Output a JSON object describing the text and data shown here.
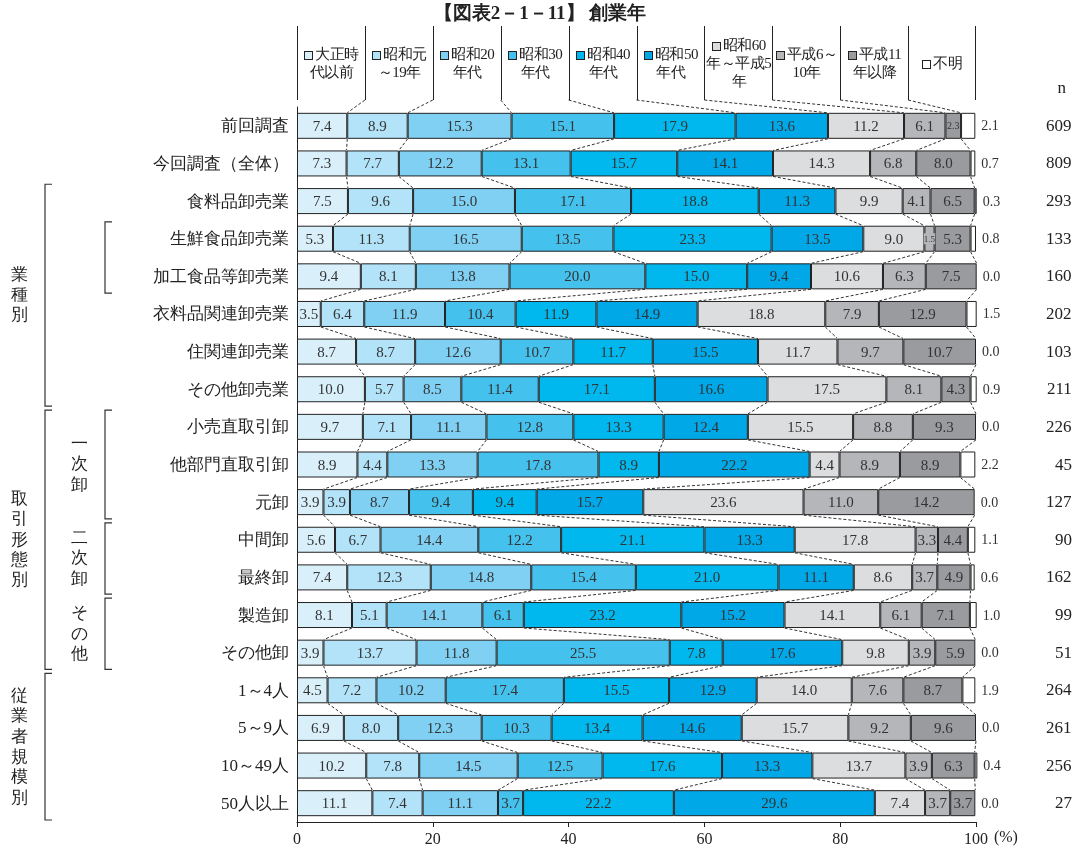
{
  "chart_data": {
    "type": "bar",
    "orientation": "horizontal",
    "stacked": true,
    "title": "【図表2－1－11】 創業年",
    "xlabel": "(%)",
    "xlim": [
      0,
      100
    ],
    "xticks": [
      0,
      20,
      40,
      60,
      80,
      100
    ],
    "legend": "top",
    "grid": false,
    "categories": [
      "前回調査",
      "今回調査（全体）",
      "食料品卸売業",
      "生鮮食品卸売業",
      "加工食品等卸売業",
      "衣料品関連卸売業",
      "住関連卸売業",
      "その他卸売業",
      "小売直取引卸",
      "他部門直取引卸",
      "元卸",
      "中間卸",
      "最終卸",
      "製造卸",
      "その他卸",
      "1～4人",
      "5～9人",
      "10～49人",
      "50人以上"
    ],
    "series": [
      {
        "name": "大正時代以前",
        "color": "#d9f0fb",
        "values": [
          7.4,
          7.3,
          7.5,
          5.3,
          9.4,
          3.5,
          8.7,
          10.0,
          9.7,
          8.9,
          3.9,
          5.6,
          7.4,
          8.1,
          3.9,
          4.5,
          6.9,
          10.2,
          11.1
        ],
        "value_labels": [
          "7.4",
          "7.3",
          "7.5",
          "5.3",
          "9.4",
          "3.5",
          "8.7",
          "10.0",
          "9.7",
          "8.9",
          "3.9",
          "5.6",
          "7.4",
          "8.1",
          "3.9",
          "4.5",
          "6.9",
          "10.2",
          "11.1"
        ]
      },
      {
        "name": "昭和元～19年",
        "color": "#b3e3f9",
        "values": [
          8.9,
          7.7,
          9.6,
          11.3,
          8.1,
          6.4,
          8.7,
          5.7,
          7.1,
          4.4,
          3.9,
          6.7,
          12.3,
          5.1,
          13.7,
          7.2,
          8.0,
          7.8,
          7.4
        ],
        "value_labels": [
          "8.9",
          "7.7",
          "9.6",
          "11.3",
          "8.1",
          "6.4",
          "8.7",
          "5.7",
          "7.1",
          "4.4",
          "3.9",
          "6.7",
          "12.3",
          "5.1",
          "13.7",
          "7.2",
          "8.0",
          "7.8",
          "7.4"
        ]
      },
      {
        "name": "昭和20年代",
        "color": "#7fd0f3",
        "values": [
          15.3,
          12.2,
          15.0,
          16.5,
          13.8,
          11.9,
          12.6,
          8.5,
          11.1,
          13.3,
          8.7,
          14.4,
          14.8,
          14.1,
          11.8,
          10.2,
          12.3,
          14.5,
          11.1
        ],
        "value_labels": [
          "15.3",
          "12.2",
          "15.0",
          "16.5",
          "13.8",
          "11.9",
          "12.6",
          "8.5",
          "11.1",
          "13.3",
          "8.7",
          "14.4",
          "14.8",
          "14.1",
          "11.8",
          "10.2",
          "12.3",
          "14.5",
          "11.1"
        ]
      },
      {
        "name": "昭和30年代",
        "color": "#45c1ee",
        "values": [
          15.1,
          13.1,
          17.1,
          13.5,
          20.0,
          10.4,
          10.7,
          11.4,
          12.8,
          17.8,
          9.4,
          12.2,
          15.4,
          6.1,
          25.5,
          17.4,
          10.3,
          12.5,
          3.7
        ],
        "value_labels": [
          "15.1",
          "13.1",
          "17.1",
          "13.5",
          "20.0",
          "10.4",
          "10.7",
          "11.4",
          "12.8",
          "17.8",
          "9.4",
          "12.2",
          "15.4",
          "6.1",
          "25.5",
          "17.4",
          "10.3",
          "12.5",
          "3.7"
        ]
      },
      {
        "name": "昭和40年代",
        "color": "#00b8ee",
        "values": [
          17.9,
          15.7,
          18.8,
          23.3,
          15.0,
          11.9,
          11.7,
          17.1,
          13.3,
          8.9,
          9.4,
          21.1,
          21.0,
          23.2,
          7.8,
          15.5,
          13.4,
          17.6,
          22.2
        ],
        "value_labels": [
          "17.9",
          "15.7",
          "18.8",
          "23.3",
          "15.0",
          "11.9",
          "11.7",
          "17.1",
          "13.3",
          "8.9",
          "9.4",
          "21.1",
          "21.0",
          "23.2",
          "7.8",
          "15.5",
          "13.4",
          "17.6",
          "22.2"
        ]
      },
      {
        "name": "昭和50年代",
        "color": "#00a8e8",
        "values": [
          13.6,
          14.1,
          11.3,
          13.5,
          9.4,
          14.9,
          15.5,
          16.6,
          12.4,
          22.2,
          15.7,
          13.3,
          11.1,
          15.2,
          17.6,
          12.9,
          14.6,
          13.3,
          29.6
        ],
        "value_labels": [
          "13.6",
          "14.1",
          "11.3",
          "13.5",
          "9.4",
          "14.9",
          "15.5",
          "16.6",
          "12.4",
          "22.2",
          "15.7",
          "13.3",
          "11.1",
          "15.2",
          "17.6",
          "12.9",
          "14.6",
          "13.3",
          "29.6"
        ]
      },
      {
        "name": "昭和60年～平成5年",
        "color": "#dcdddf",
        "values": [
          11.2,
          14.3,
          9.9,
          9.0,
          10.6,
          18.8,
          11.7,
          17.5,
          15.5,
          4.4,
          23.6,
          17.8,
          8.6,
          14.1,
          9.8,
          14.0,
          15.7,
          13.7,
          7.4
        ],
        "value_labels": [
          "11.2",
          "14.3",
          "9.9",
          "9.0",
          "10.6",
          "18.8",
          "11.7",
          "17.5",
          "15.5",
          "4.4",
          "23.6",
          "17.8",
          "8.6",
          "14.1",
          "9.8",
          "14.0",
          "15.7",
          "13.7",
          "7.4"
        ]
      },
      {
        "name": "平成6～10年",
        "color": "#b5b6b9",
        "values": [
          6.1,
          6.8,
          4.1,
          1.5,
          6.3,
          7.9,
          9.7,
          8.1,
          8.8,
          8.9,
          11.0,
          3.3,
          3.7,
          6.1,
          3.9,
          7.6,
          9.2,
          3.9,
          3.7
        ],
        "value_labels": [
          "6.1",
          "6.8",
          "4.1",
          "1.5",
          "6.3",
          "7.9",
          "9.7",
          "8.1",
          "8.8",
          "8.9",
          "11.0",
          "3.3",
          "3.7",
          "6.1",
          "3.9",
          "7.6",
          "9.2",
          "3.9",
          "3.7"
        ]
      },
      {
        "name": "平成11年以降",
        "color": "#9a9b9e",
        "values": [
          2.3,
          8.0,
          6.5,
          5.3,
          7.5,
          12.9,
          10.7,
          4.3,
          9.3,
          8.9,
          14.2,
          4.4,
          4.9,
          7.1,
          5.9,
          8.7,
          9.6,
          6.3,
          3.7
        ],
        "value_labels": [
          "2.3",
          "8.0",
          "6.5",
          "5.3",
          "7.5",
          "12.9",
          "10.7",
          "4.3",
          "9.3",
          "8.9",
          "14.2",
          "4.4",
          "4.9",
          "7.1",
          "5.9",
          "8.7",
          "9.6",
          "6.3",
          "3.7"
        ]
      },
      {
        "name": "不明",
        "color": "#ffffff",
        "values": [
          2.1,
          0.7,
          0.3,
          0.8,
          0.0,
          1.5,
          0.0,
          0.9,
          0.0,
          2.2,
          0.0,
          1.1,
          0.6,
          1.0,
          0.0,
          1.9,
          0.0,
          0.4,
          0.0
        ],
        "value_labels": [
          "2.1",
          "0.7",
          "0.3",
          "0.8",
          "0.0",
          "1.5",
          "0.0",
          "0.9",
          "0.0",
          "2.2",
          "0.0",
          "1.1",
          "0.6",
          "1.0",
          "0.0",
          "1.9",
          "0.0",
          "0.4",
          "0.0"
        ]
      }
    ],
    "annotations": [
      "業種別",
      "取引形態別",
      "一次卸",
      "二次卸",
      "その他",
      "従業者規模別",
      "n",
      "609",
      "809",
      "293",
      "133",
      "160",
      "202",
      "103",
      "211",
      "226",
      "45",
      "127",
      "90",
      "162",
      "99",
      "51",
      "264",
      "261",
      "256",
      "27"
    ]
  }
}
